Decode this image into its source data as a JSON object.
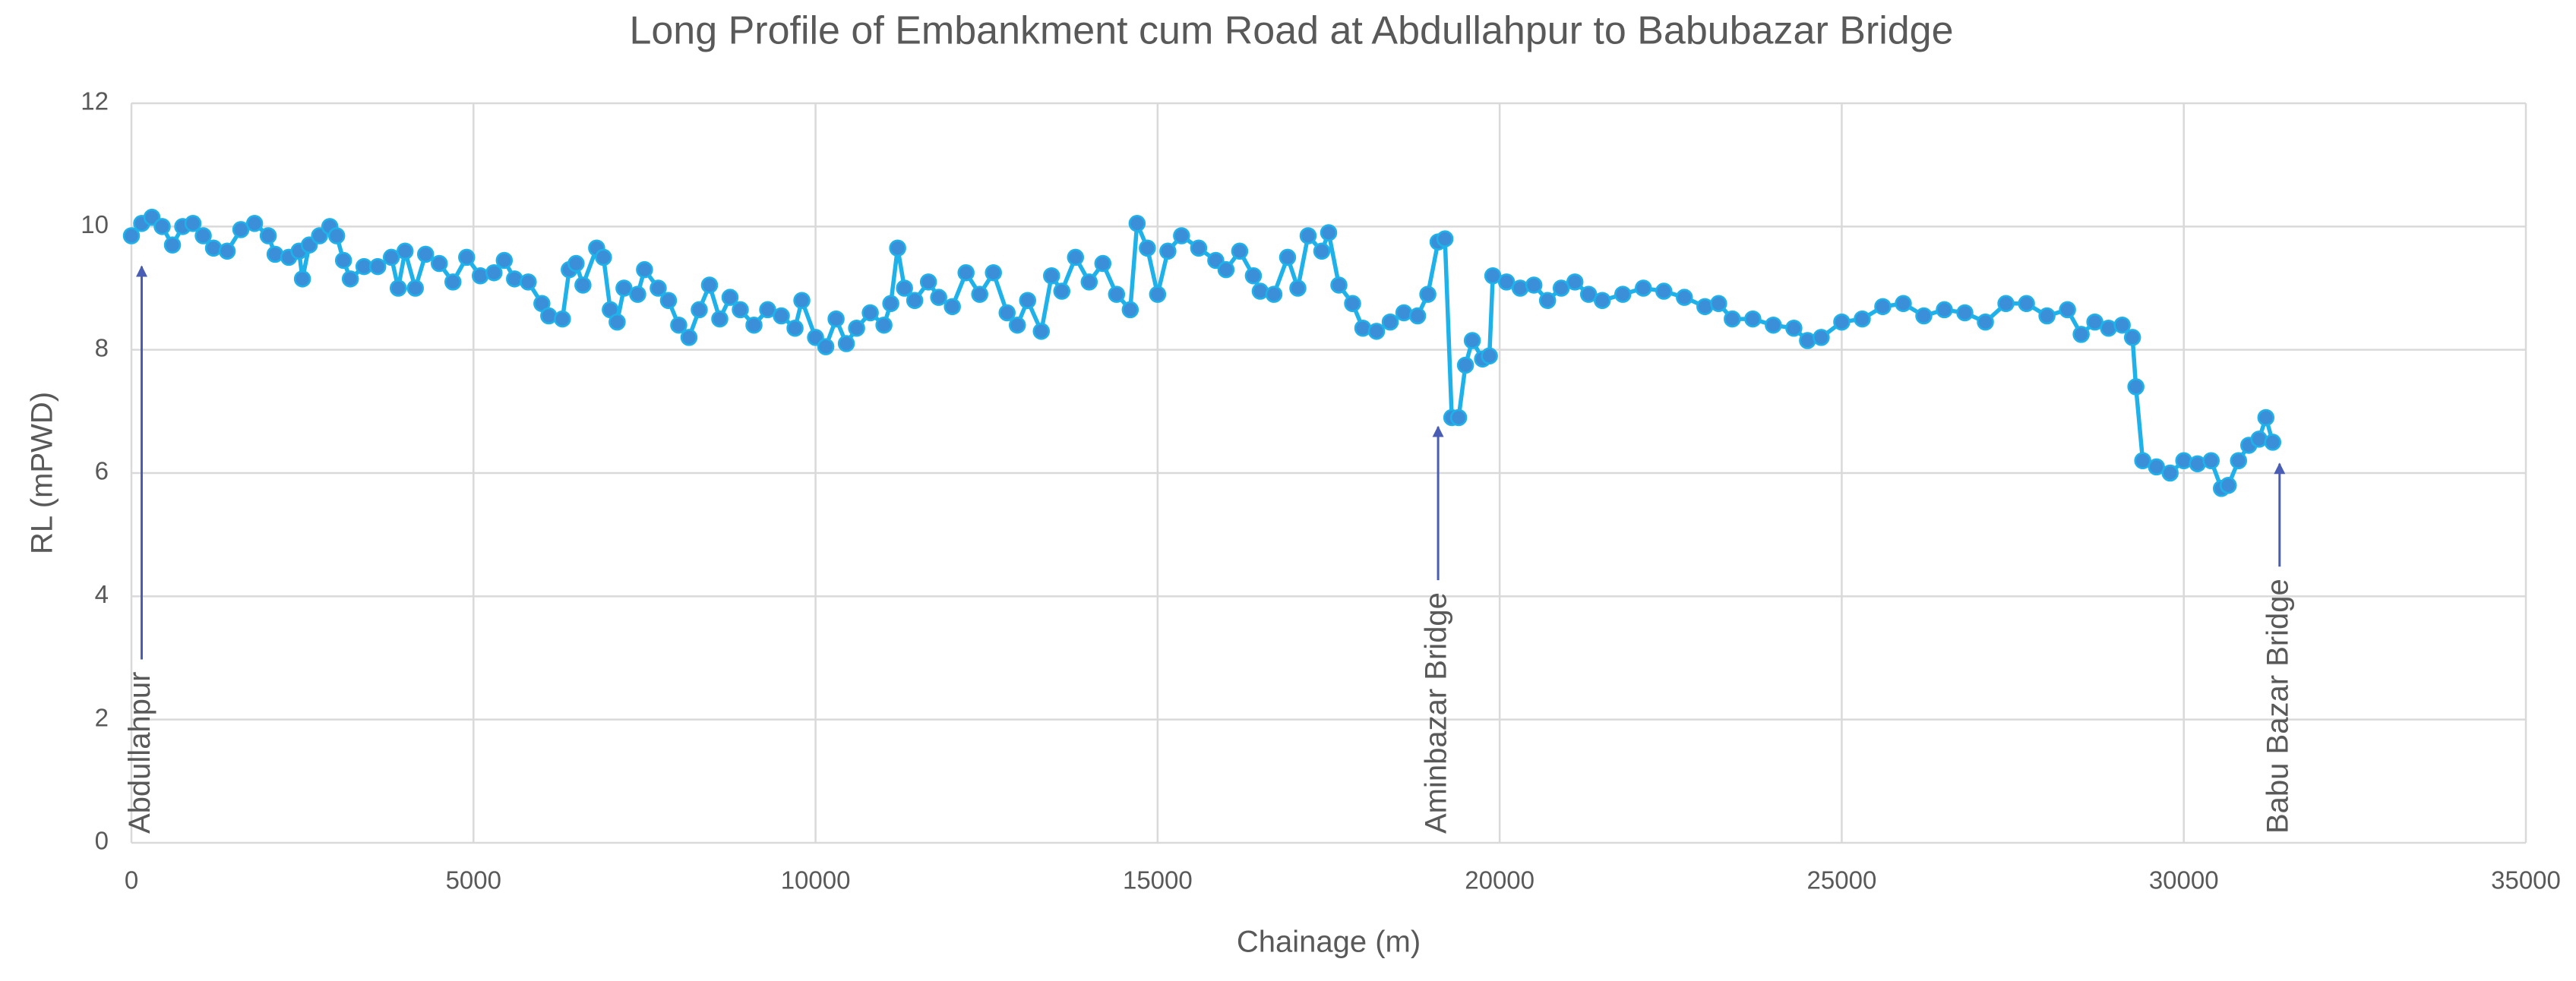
{
  "chart_data": {
    "type": "line",
    "title": "Long Profile of Embankment cum Road at Abdullahpur to Babubazar Bridge",
    "xlabel": "Chainage (m)",
    "ylabel": "RL (mPWD)",
    "xlim": [
      0,
      35000
    ],
    "xticks": [
      0,
      5000,
      10000,
      15000,
      20000,
      25000,
      30000,
      35000
    ],
    "ylim": [
      0,
      12
    ],
    "yticks": [
      0,
      2,
      4,
      6,
      8,
      10,
      12
    ],
    "grid": true,
    "color": "#1fb2ea",
    "marker_color": "#3b8fd8",
    "x": [
      0,
      150,
      300,
      450,
      600,
      750,
      900,
      1050,
      1200,
      1400,
      1600,
      1800,
      2000,
      2100,
      2300,
      2450,
      2500,
      2600,
      2750,
      2900,
      3000,
      3100,
      3200,
      3400,
      3600,
      3800,
      3900,
      4000,
      4150,
      4300,
      4500,
      4700,
      4900,
      5100,
      5300,
      5450,
      5600,
      5800,
      6000,
      6100,
      6300,
      6400,
      6500,
      6600,
      6800,
      6900,
      7000,
      7100,
      7200,
      7400,
      7500,
      7700,
      7850,
      8000,
      8150,
      8300,
      8450,
      8600,
      8750,
      8900,
      9100,
      9300,
      9500,
      9700,
      9800,
      10000,
      10150,
      10300,
      10450,
      10600,
      10800,
      11000,
      11100,
      11200,
      11300,
      11450,
      11650,
      11800,
      12000,
      12200,
      12400,
      12600,
      12800,
      12950,
      13100,
      13300,
      13450,
      13600,
      13800,
      14000,
      14200,
      14400,
      14600,
      14700,
      14850,
      15000,
      15150,
      15350,
      15600,
      15850,
      16000,
      16200,
      16400,
      16500,
      16700,
      16900,
      17050,
      17200,
      17400,
      17500,
      17650,
      17850,
      18000,
      18200,
      18400,
      18600,
      18800,
      18950,
      19100,
      19200,
      19300,
      19400,
      19500,
      19600,
      19750,
      19850,
      19900,
      20100,
      20300,
      20500,
      20700,
      20900,
      21100,
      21300,
      21500,
      21800,
      22100,
      22400,
      22700,
      23000,
      23200,
      23400,
      23700,
      24000,
      24300,
      24500,
      24700,
      25000,
      25300,
      25600,
      25900,
      26200,
      26500,
      26800,
      27100,
      27400,
      27700,
      28000,
      28300,
      28500,
      28700,
      28900,
      29100,
      29250,
      29300,
      29400,
      29600,
      29800,
      30000,
      30200,
      30400,
      30550,
      30650,
      30800,
      30950,
      31100,
      31200,
      31300
    ],
    "values": [
      9.85,
      10.05,
      10.15,
      10.0,
      9.7,
      10.0,
      10.05,
      9.85,
      9.65,
      9.6,
      9.95,
      10.05,
      9.85,
      9.55,
      9.5,
      9.6,
      9.15,
      9.7,
      9.85,
      10.0,
      9.85,
      9.45,
      9.15,
      9.35,
      9.35,
      9.5,
      9.0,
      9.6,
      9.0,
      9.55,
      9.4,
      9.1,
      9.5,
      9.2,
      9.25,
      9.45,
      9.15,
      9.1,
      8.75,
      8.55,
      8.5,
      9.3,
      9.4,
      9.05,
      9.65,
      9.5,
      8.65,
      8.45,
      9.0,
      8.9,
      9.3,
      9.0,
      8.8,
      8.4,
      8.2,
      8.65,
      9.05,
      8.5,
      8.85,
      8.65,
      8.4,
      8.65,
      8.55,
      8.35,
      8.8,
      8.2,
      8.05,
      8.5,
      8.1,
      8.35,
      8.6,
      8.4,
      8.75,
      9.65,
      9.0,
      8.8,
      9.1,
      8.85,
      8.7,
      9.25,
      8.9,
      9.25,
      8.6,
      8.4,
      8.8,
      8.3,
      9.2,
      8.95,
      9.5,
      9.1,
      9.4,
      8.9,
      8.65,
      10.05,
      9.65,
      8.9,
      9.6,
      9.85,
      9.65,
      9.45,
      9.3,
      9.6,
      9.2,
      8.95,
      8.9,
      9.5,
      9.0,
      9.85,
      9.6,
      9.9,
      9.05,
      8.75,
      8.35,
      8.3,
      8.45,
      8.6,
      8.55,
      8.9,
      9.75,
      9.8,
      6.9,
      6.9,
      7.75,
      8.15,
      7.85,
      7.9,
      9.2,
      9.1,
      9.0,
      9.05,
      8.8,
      9.0,
      9.1,
      8.9,
      8.8,
      8.9,
      9.0,
      8.95,
      8.85,
      8.7,
      8.75,
      8.5,
      8.5,
      8.4,
      8.35,
      8.15,
      8.2,
      8.45,
      8.5,
      8.7,
      8.75,
      8.55,
      8.65,
      8.6,
      8.45,
      8.75,
      8.75,
      8.55,
      8.65,
      8.25,
      8.45,
      8.35,
      8.4,
      8.2,
      7.4,
      6.2,
      6.1,
      6.0,
      6.2,
      6.15,
      6.2,
      5.75,
      5.8,
      6.2,
      6.45,
      6.55,
      6.9,
      6.5
    ],
    "annotations": [
      {
        "text": "Abdullahpur",
        "x": 150,
        "y": 9.4
      },
      {
        "text": "Aminbazar Bridge",
        "x": 19100,
        "y": 6.8
      },
      {
        "text": "Babu Bazar Bridge",
        "x": 31400,
        "y": 6.2
      }
    ]
  }
}
